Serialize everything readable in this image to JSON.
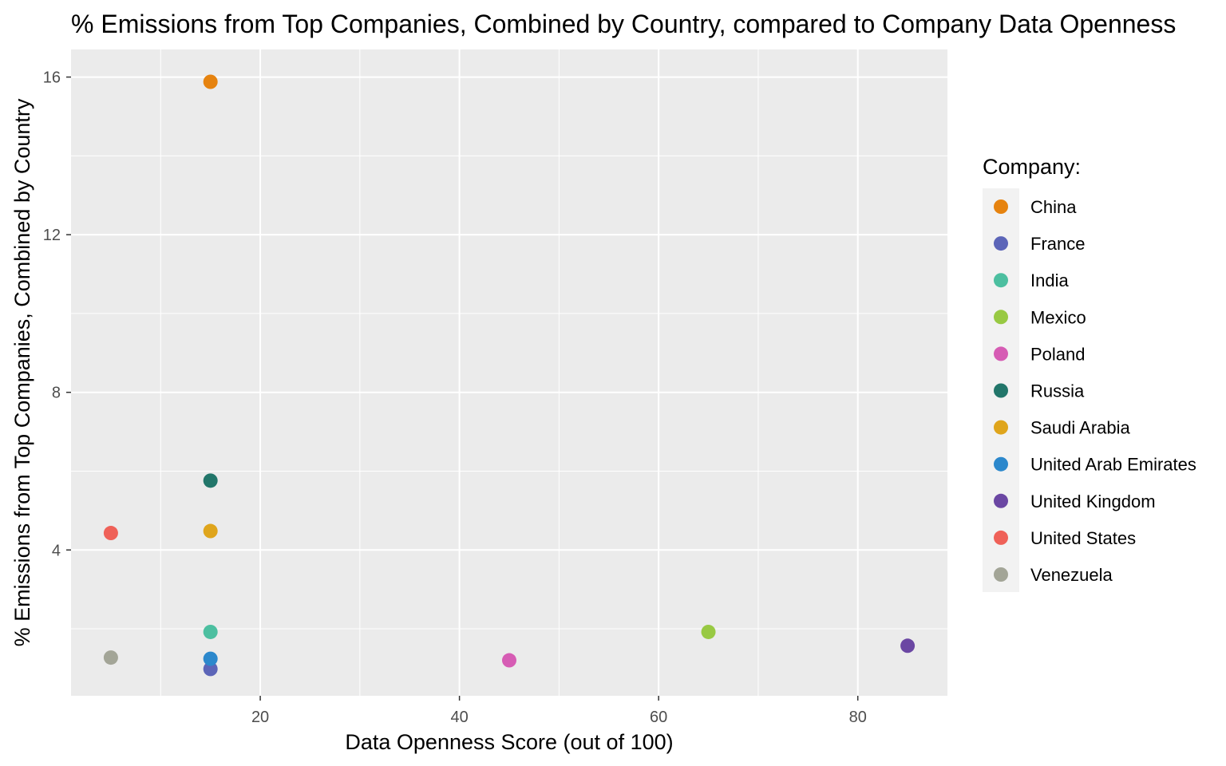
{
  "chart_data": {
    "type": "scatter",
    "title": "% Emissions from Top Companies, Combined by Country, compared to Company Data Openness",
    "xlabel": "Data Openness Score (out of 100)",
    "ylabel": "% Emissions from Top Companies, Combined by Country",
    "xlim": [
      1.0,
      89.0
    ],
    "ylim": [
      0.3,
      16.7
    ],
    "x_ticks": [
      20,
      40,
      60,
      80
    ],
    "x_minor_ticks": [
      10,
      30,
      50,
      70
    ],
    "y_ticks": [
      4,
      8,
      12,
      16
    ],
    "y_minor_ticks": [
      2,
      6,
      10,
      14
    ],
    "grid": true,
    "legend": {
      "title": "Company:",
      "position": "right"
    },
    "points": [
      {
        "name": "China",
        "x": 15,
        "y": 15.88,
        "color": "#E6830F"
      },
      {
        "name": "France",
        "x": 15,
        "y": 0.98,
        "color": "#5C65B8"
      },
      {
        "name": "India",
        "x": 15,
        "y": 1.92,
        "color": "#4CBFA0"
      },
      {
        "name": "Mexico",
        "x": 65,
        "y": 1.92,
        "color": "#98C943"
      },
      {
        "name": "Poland",
        "x": 45,
        "y": 1.2,
        "color": "#D65CB4"
      },
      {
        "name": "Russia",
        "x": 15,
        "y": 5.76,
        "color": "#22766A"
      },
      {
        "name": "Saudi Arabia",
        "x": 15,
        "y": 4.48,
        "color": "#DFA51C"
      },
      {
        "name": "United Arab Emirates",
        "x": 15,
        "y": 1.24,
        "color": "#2C88CC"
      },
      {
        "name": "United Kingdom",
        "x": 85,
        "y": 1.57,
        "color": "#6B47A3"
      },
      {
        "name": "United States",
        "x": 5,
        "y": 4.43,
        "color": "#EF6158"
      },
      {
        "name": "Venezuela",
        "x": 5,
        "y": 1.27,
        "color": "#A3A597"
      }
    ]
  }
}
